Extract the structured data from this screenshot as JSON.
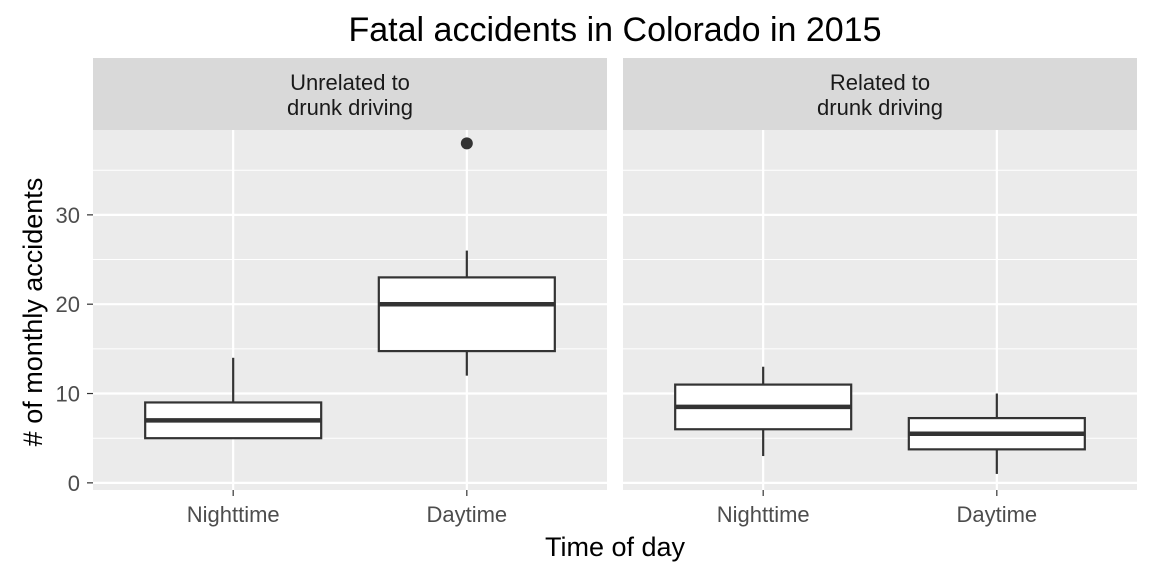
{
  "chart_data": {
    "type": "boxplot",
    "title": "Fatal accidents in Colorado in 2015",
    "xlabel": "Time of day",
    "ylabel": "# of monthly accidents",
    "categories": [
      "Nighttime",
      "Daytime"
    ],
    "ylim": [
      -0.8,
      39.5
    ],
    "yticks": [
      0,
      10,
      20,
      30
    ],
    "grid": true,
    "panels": [
      {
        "facet_label_lines": [
          "Unrelated to",
          "drunk driving"
        ],
        "boxes": [
          {
            "category": "Nighttime",
            "whisker_low": 5,
            "q1": 5,
            "median": 7,
            "q3": 9,
            "whisker_high": 14,
            "outliers": []
          },
          {
            "category": "Daytime",
            "whisker_low": 12,
            "q1": 14.75,
            "median": 20,
            "q3": 23,
            "whisker_high": 26,
            "outliers": [
              38
            ]
          }
        ]
      },
      {
        "facet_label_lines": [
          "Related to",
          "drunk driving"
        ],
        "boxes": [
          {
            "category": "Nighttime",
            "whisker_low": 3,
            "q1": 6,
            "median": 8.5,
            "q3": 11,
            "whisker_high": 13,
            "outliers": []
          },
          {
            "category": "Daytime",
            "whisker_low": 1,
            "q1": 3.75,
            "median": 5.5,
            "q3": 7.25,
            "whisker_high": 10,
            "outliers": []
          }
        ]
      }
    ]
  },
  "colors": {
    "panel_background": "#ebebeb",
    "strip_background": "#d9d9d9",
    "grid_line": "#ffffff",
    "box_stroke": "#333333",
    "box_fill": "#ffffff",
    "tick_text": "#4d4d4d"
  }
}
